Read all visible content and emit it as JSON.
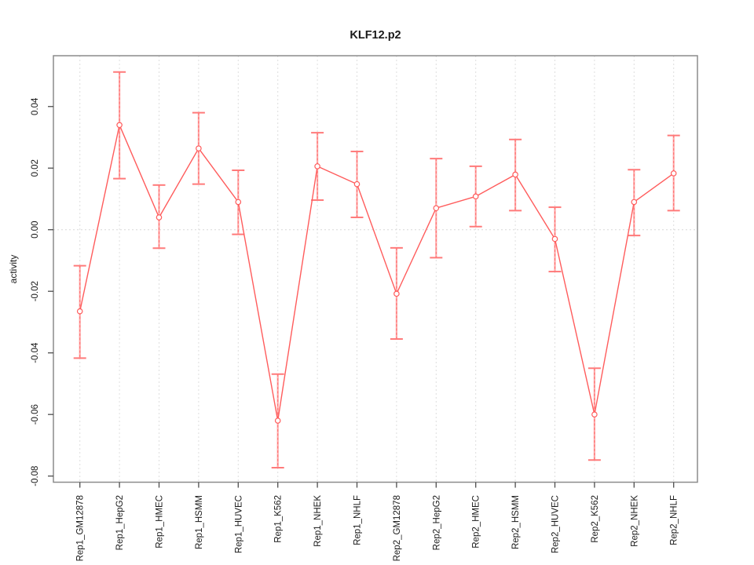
{
  "figure": {
    "background_color": "#ffffff"
  },
  "chart_data": {
    "type": "line",
    "title": "KLF12.p2",
    "xlabel": "",
    "ylabel": "activity",
    "legend": "none",
    "grid": "vertical-dashed-per-category-plus-dotted-zero-line",
    "marker": "open-circle",
    "categories": [
      "Rep1_GM12878",
      "Rep1_HepG2",
      "Rep1_HMEC",
      "Rep1_HSMM",
      "Rep1_HUVEC",
      "Rep1_K562",
      "Rep1_NHEK",
      "Rep1_NHLF",
      "Rep2_GM12878",
      "Rep2_HepG2",
      "Rep2_HMEC",
      "Rep2_HSMM",
      "Rep2_HUVEC",
      "Rep2_K562",
      "Rep2_NHEK",
      "Rep2_NHLF"
    ],
    "series": [
      {
        "name": "activity",
        "values": [
          -0.0265,
          0.034,
          0.004,
          0.0264,
          0.009,
          -0.062,
          0.0206,
          0.0148,
          -0.0208,
          0.007,
          0.0108,
          0.0179,
          -0.003,
          -0.06,
          0.009,
          0.0183
        ],
        "error_high": [
          -0.0117,
          0.0512,
          0.0145,
          0.038,
          0.0193,
          -0.0469,
          0.0315,
          0.0254,
          -0.0059,
          0.0231,
          0.0206,
          0.0293,
          0.0073,
          -0.045,
          0.0195,
          0.0306
        ],
        "error_low": [
          -0.0417,
          0.0166,
          -0.006,
          0.0148,
          -0.0015,
          -0.0773,
          0.0096,
          0.004,
          -0.0355,
          -0.0091,
          0.001,
          0.0062,
          -0.0136,
          -0.0748,
          -0.0019,
          0.0062
        ]
      }
    ],
    "yticks": {
      "values": [
        0.04,
        0.02,
        0.0,
        -0.02,
        -0.04,
        -0.06,
        -0.08
      ],
      "labels": [
        "0.04",
        "0.02",
        "0.00",
        "-0.02",
        "-0.04",
        "-0.06",
        "-0.08"
      ]
    },
    "ylim": [
      -0.082,
      0.0565
    ],
    "zero_reference_line": 0.0,
    "colors": {
      "line": "#ff5c5c",
      "marker_stroke": "#ff5c5c",
      "error_bar_line": "#ffaaaa",
      "error_bar_dash": "#ff6b6b",
      "error_bar_cap": "#ff7a7a",
      "gridline": "#dedede",
      "zero_line": "#d8d8d8",
      "plot_border": "#8c8c8c",
      "tick_mark": "#4d4d4d",
      "text": "#1a1a1a",
      "background": "#ffffff"
    }
  }
}
